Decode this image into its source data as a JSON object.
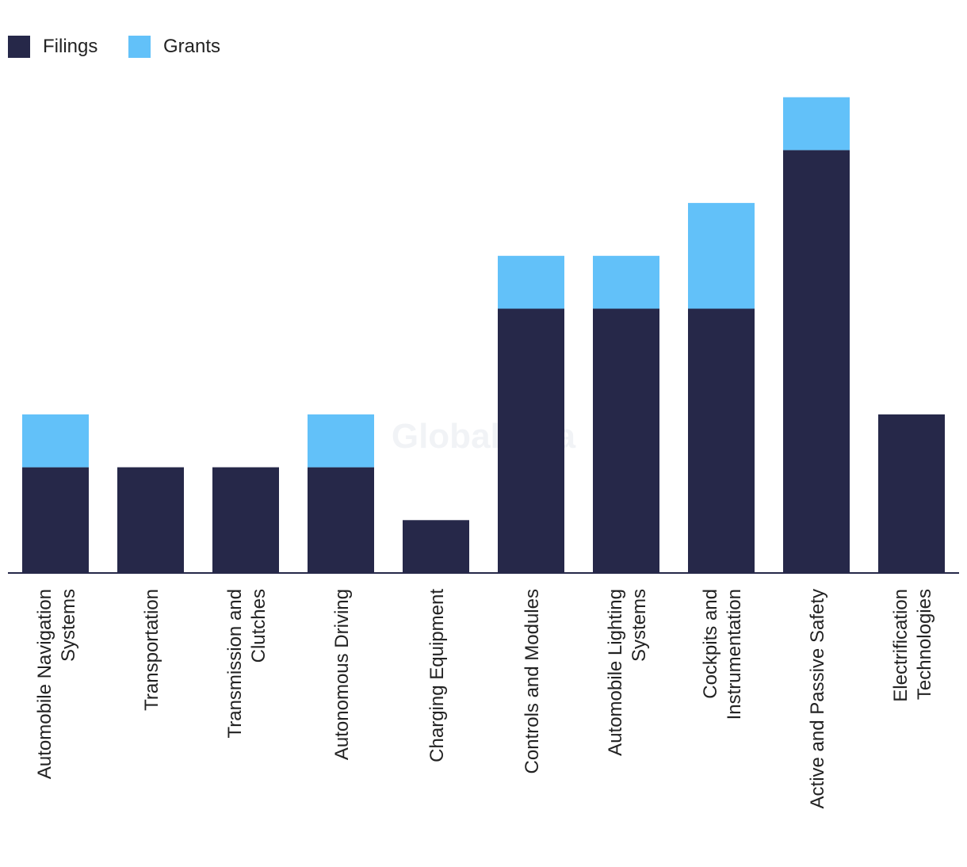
{
  "chart_data": {
    "type": "bar",
    "stacked": true,
    "title": "",
    "xlabel": "",
    "ylabel": "",
    "ylim": [
      0,
      9
    ],
    "grid": false,
    "legend_position": "top-left",
    "watermark": "GlobalData",
    "categories": [
      [
        "Automobile Navigation",
        "Systems"
      ],
      [
        "Transportation"
      ],
      [
        "Transmission and",
        "Clutches"
      ],
      [
        "Autonomous Driving"
      ],
      [
        "Charging Equipment"
      ],
      [
        "Controls and Modules"
      ],
      [
        "Automobile Lighting",
        "Systems"
      ],
      [
        "Cockpits and",
        "Instrumentation"
      ],
      [
        "Active and Passive Safety"
      ],
      [
        "Electrification",
        "Technologies"
      ]
    ],
    "series": [
      {
        "name": "Filings",
        "color": "#262849",
        "values": [
          2,
          2,
          2,
          2,
          1,
          5,
          5,
          5,
          8,
          3
        ]
      },
      {
        "name": "Grants",
        "color": "#62c1f9",
        "values": [
          1,
          0,
          0,
          1,
          0,
          1,
          1,
          2,
          1,
          0
        ]
      }
    ]
  }
}
